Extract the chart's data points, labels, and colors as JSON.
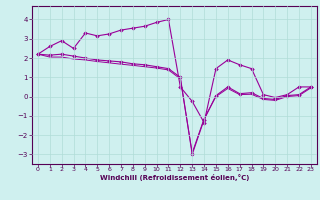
{
  "xlabel": "Windchill (Refroidissement éolien,°C)",
  "background_color": "#cff0ef",
  "line_color": "#990099",
  "grid_color": "#b0ddd8",
  "xlim": [
    -0.5,
    23.5
  ],
  "ylim": [
    -3.5,
    4.7
  ],
  "yticks": [
    -3,
    -2,
    -1,
    0,
    1,
    2,
    3,
    4
  ],
  "xticks": [
    0,
    1,
    2,
    3,
    4,
    5,
    6,
    7,
    8,
    9,
    10,
    11,
    12,
    13,
    14,
    15,
    16,
    17,
    18,
    19,
    20,
    21,
    22,
    23
  ],
  "series1_x": [
    0,
    1,
    2,
    3,
    4,
    5,
    6,
    7,
    8,
    9,
    10,
    11,
    12,
    13,
    14,
    15,
    16,
    17,
    18,
    19,
    20,
    21,
    22,
    23
  ],
  "series1_y": [
    2.2,
    2.6,
    2.9,
    2.5,
    3.3,
    3.15,
    3.25,
    3.45,
    3.55,
    3.65,
    3.85,
    4.0,
    0.5,
    -0.25,
    -1.35,
    1.45,
    1.9,
    1.65,
    1.45,
    0.1,
    -0.05,
    0.1,
    0.5,
    0.5
  ],
  "series2_x": [
    0,
    1,
    2,
    3,
    4,
    5,
    6,
    7,
    8,
    9,
    10,
    11,
    12,
    13,
    14,
    15,
    16,
    17,
    18,
    19,
    20,
    21,
    22,
    23
  ],
  "series2_y": [
    2.2,
    2.15,
    2.2,
    2.1,
    2.0,
    1.9,
    1.85,
    1.8,
    1.7,
    1.65,
    1.55,
    1.45,
    1.0,
    -3.0,
    -1.2,
    0.05,
    0.5,
    0.15,
    0.2,
    -0.1,
    -0.15,
    0.05,
    0.1,
    0.5
  ],
  "series3_x": [
    0,
    1,
    2,
    3,
    4,
    5,
    6,
    7,
    8,
    9,
    10,
    11,
    12,
    13,
    14,
    15,
    16,
    17,
    18,
    19,
    20,
    21,
    22,
    23
  ],
  "series3_y": [
    2.2,
    2.05,
    2.05,
    1.95,
    1.9,
    1.82,
    1.75,
    1.68,
    1.62,
    1.55,
    1.48,
    1.38,
    0.92,
    -2.92,
    -1.15,
    0.0,
    0.42,
    0.1,
    0.12,
    -0.15,
    -0.2,
    0.0,
    0.05,
    0.45
  ]
}
